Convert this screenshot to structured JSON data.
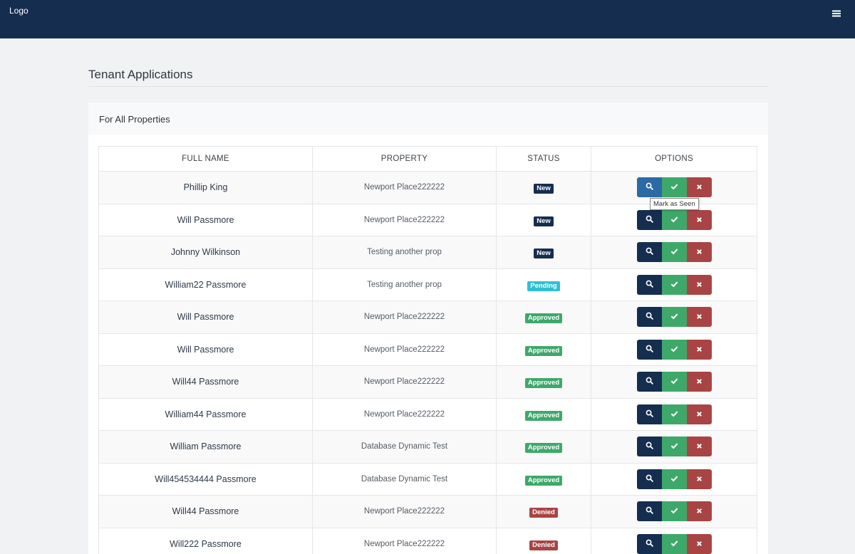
{
  "header": {
    "logo": "Logo",
    "bg_color": "#152e4f",
    "menu_icon": "hamburger-menu-icon"
  },
  "page": {
    "title": "Tenant Applications"
  },
  "panel": {
    "title": "For All Properties"
  },
  "table": {
    "columns": [
      "FULL NAME",
      "PROPERTY",
      "STATUS",
      "OPTIONS"
    ],
    "rows": [
      {
        "name": "Phillip King",
        "property": "Newport Place222222",
        "status": "New"
      },
      {
        "name": "Will Passmore",
        "property": "Newport Place222222",
        "status": "New"
      },
      {
        "name": "Johnny Wilkinson",
        "property": "Testing another prop",
        "status": "New"
      },
      {
        "name": "William22 Passmore",
        "property": "Testing another prop",
        "status": "Pending"
      },
      {
        "name": "Will Passmore",
        "property": "Newport Place222222",
        "status": "Approved"
      },
      {
        "name": "Will Passmore",
        "property": "Newport Place222222",
        "status": "Approved"
      },
      {
        "name": "Will44 Passmore",
        "property": "Newport Place222222",
        "status": "Approved"
      },
      {
        "name": "William44 Passmore",
        "property": "Newport Place222222",
        "status": "Approved"
      },
      {
        "name": "William Passmore",
        "property": "Database Dynamic Test",
        "status": "Approved"
      },
      {
        "name": "Will454534444 Passmore",
        "property": "Database Dynamic Test",
        "status": "Approved"
      },
      {
        "name": "Will44 Passmore",
        "property": "Newport Place222222",
        "status": "Denied"
      },
      {
        "name": "Will222 Passmore",
        "property": "Newport Place222222",
        "status": "Denied"
      }
    ],
    "option_icons": [
      "search-icon",
      "check-icon",
      "close-icon"
    ]
  },
  "status_colors": {
    "New": "#152e4f",
    "Pending": "#2fbfd3",
    "Approved": "#3ea86a",
    "Denied": "#a94444"
  },
  "tooltip": {
    "text": "Mark as Seen"
  }
}
